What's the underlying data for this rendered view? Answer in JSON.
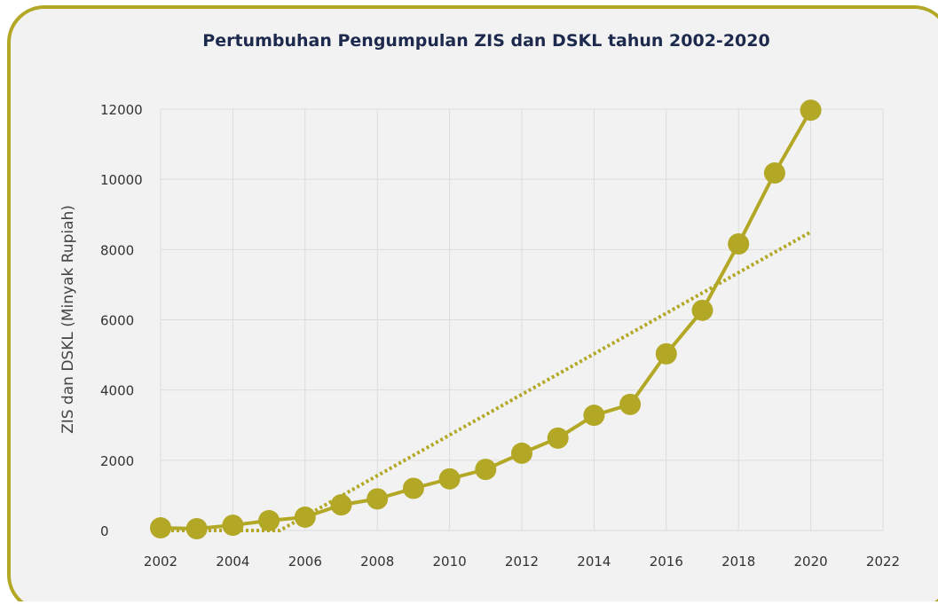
{
  "chart_data": {
    "type": "line",
    "title": "Pertumbuhan Pengumpulan ZIS dan DSKL tahun 2002-2020",
    "y_label": "ZIS dan DSKL (Minyak Rupiah)",
    "xlim": [
      2002,
      2022
    ],
    "xticks": [
      2002,
      2004,
      2006,
      2008,
      2010,
      2012,
      2014,
      2016,
      2018,
      2020,
      2022
    ],
    "ylim": [
      0,
      12000
    ],
    "yticks": [
      0,
      2000,
      4000,
      6000,
      8000,
      10000,
      12000
    ],
    "grid": true,
    "series": [
      {
        "color": "#b3a826",
        "marker": true,
        "dotted": false,
        "x": [
          2002,
          2003,
          2004,
          2005,
          2006,
          2007,
          2008,
          2009,
          2010,
          2011,
          2012,
          2013,
          2014,
          2015,
          2016,
          2017,
          2018,
          2019,
          2020
        ],
        "values": [
          75,
          50,
          150,
          280,
          380,
          730,
          900,
          1200,
          1470,
          1740,
          2200,
          2630,
          3280,
          3590,
          5030,
          6270,
          8160,
          10180,
          11970
        ]
      },
      {
        "color": "#b3a826",
        "marker": false,
        "dotted": true,
        "x": [
          2002,
          2005.3,
          2020
        ],
        "values": [
          0,
          0,
          8500
        ]
      }
    ]
  }
}
